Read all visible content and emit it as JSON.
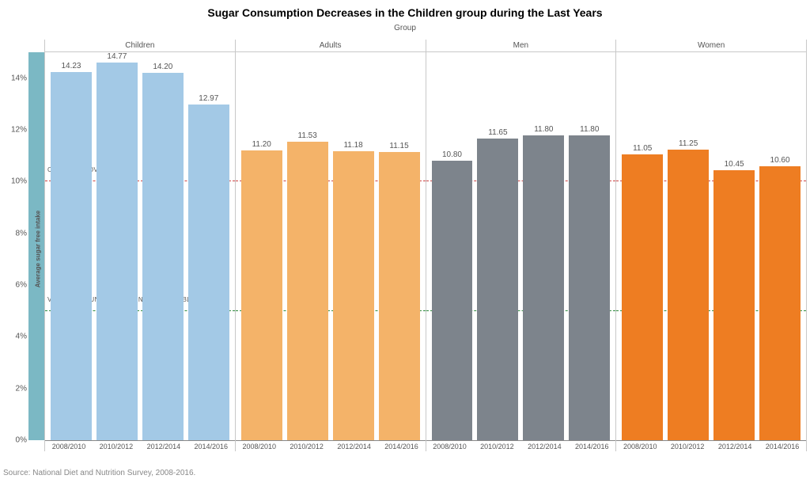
{
  "title": "Sugar Consumption Decreases in the Children group during the Last Years",
  "title_fontsize": 14,
  "group_label": "Group",
  "y_axis_label": "Average sugar free intake",
  "source": "Source: National Diet and Nutrition Survey, 2008-2016.",
  "y_axis": {
    "min": 0,
    "max": 15,
    "ticks": [
      0,
      2,
      4,
      6,
      8,
      10,
      12,
      14
    ],
    "tick_labels": [
      "0%",
      "2%",
      "4%",
      "6%",
      "8%",
      "10%",
      "12%",
      "14%"
    ],
    "strip_color": "#7bb8c4"
  },
  "reference_lines": [
    {
      "value": 10,
      "color": "#cc4444",
      "label": "CRITICAL ABOVE THIS LINE"
    },
    {
      "value": 5,
      "color": "#2e8b3d",
      "label": "VERY GOOD UNDER THIS LINE, ACCEPTABLE ABOVE"
    }
  ],
  "x_categories": [
    "2008/2010",
    "2010/2012",
    "2012/2014",
    "2014/2016"
  ],
  "panels": [
    {
      "name": "Children",
      "color": "#a3c9e6",
      "values": [
        14.23,
        14.77,
        14.2,
        12.97
      ]
    },
    {
      "name": "Adults",
      "color": "#f4b369",
      "values": [
        11.2,
        11.53,
        11.18,
        11.15
      ]
    },
    {
      "name": "Men",
      "color": "#7d848c",
      "values": [
        10.8,
        11.65,
        11.8,
        11.8
      ]
    },
    {
      "name": "Women",
      "color": "#ee7d22",
      "values": [
        11.05,
        11.25,
        10.45,
        10.6
      ]
    }
  ],
  "background_color": "#ffffff",
  "panel_border_color": "#c8c8c8",
  "text_color": "#555555"
}
